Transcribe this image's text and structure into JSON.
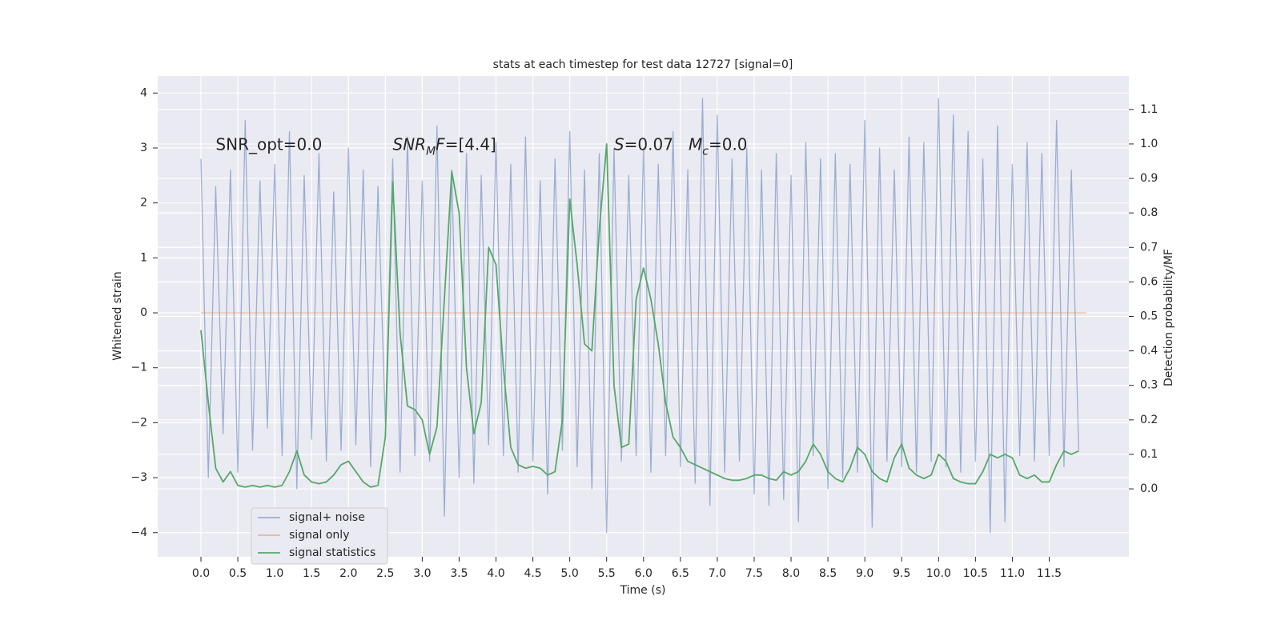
{
  "chart_data": {
    "type": "line",
    "title": "stats at each timestep for test data 12727 [signal=0]",
    "xlabel": "Time (s)",
    "ylabel": "Whitened strain",
    "y2label": "Detection probability/MF",
    "xlim": [
      -0.586,
      12.58
    ],
    "ylim": [
      -4.44,
      4.31
    ],
    "y2lim": [
      -0.197,
      1.197
    ],
    "xticks": [
      {
        "value": 0,
        "label": "0.0"
      },
      0.5,
      {
        "value": 1,
        "label": "1.0"
      },
      1.5,
      {
        "value": 2,
        "label": "2.0"
      },
      2.5,
      {
        "value": 3,
        "label": "3.0"
      },
      3.5,
      {
        "value": 4,
        "label": "4.0"
      },
      4.5,
      {
        "value": 5,
        "label": "5.0"
      },
      5.5,
      {
        "value": 6,
        "label": "6.0"
      },
      6.5,
      {
        "value": 7,
        "label": "7.0"
      },
      7.5,
      {
        "value": 8,
        "label": "8.0"
      },
      8.5,
      {
        "value": 9,
        "label": "9.0"
      },
      9.5,
      {
        "value": 10,
        "label": "10.0"
      },
      10.5,
      {
        "value": 11,
        "label": "11.0"
      },
      11.5
    ],
    "yticks": [
      {
        "value": -4,
        "label": "−4"
      },
      {
        "value": -3,
        "label": "−3"
      },
      {
        "value": -2,
        "label": "−2"
      },
      {
        "value": -1,
        "label": "−1"
      },
      0,
      1,
      2,
      3,
      4
    ],
    "y2ticks": [
      {
        "value": 0,
        "label": "0.0"
      },
      0.1,
      0.2,
      0.3,
      0.4,
      0.5,
      0.6,
      0.7,
      0.8,
      0.9,
      {
        "value": 1,
        "label": "1.0"
      },
      1.1
    ],
    "grid": true,
    "legend": "lower left",
    "x": [
      0.0,
      0.1,
      0.2,
      0.3,
      0.4,
      0.5,
      0.6,
      0.7,
      0.8,
      0.9,
      1.0,
      1.1,
      1.2,
      1.3,
      1.4,
      1.5,
      1.6,
      1.7,
      1.8,
      1.9,
      2.0,
      2.1,
      2.2,
      2.3,
      2.4,
      2.5,
      2.6,
      2.7,
      2.8,
      2.9,
      3.0,
      3.1,
      3.2,
      3.3,
      3.4,
      3.5,
      3.6,
      3.7,
      3.8,
      3.9,
      4.0,
      4.1,
      4.2,
      4.3,
      4.4,
      4.5,
      4.6,
      4.7,
      4.8,
      4.9,
      5.0,
      5.1,
      5.2,
      5.3,
      5.4,
      5.5,
      5.6,
      5.7,
      5.8,
      5.9,
      6.0,
      6.1,
      6.2,
      6.3,
      6.4,
      6.5,
      6.6,
      6.7,
      6.8,
      6.9,
      7.0,
      7.1,
      7.2,
      7.3,
      7.4,
      7.5,
      7.6,
      7.7,
      7.8,
      7.9,
      8.0,
      8.1,
      8.2,
      8.3,
      8.4,
      8.5,
      8.6,
      8.7,
      8.8,
      8.9,
      9.0,
      9.1,
      9.2,
      9.3,
      9.4,
      9.5,
      9.6,
      9.7,
      9.8,
      9.9,
      10.0,
      10.1,
      10.2,
      10.3,
      10.4,
      10.5,
      10.6,
      10.7,
      10.8,
      10.9,
      11.0,
      11.1,
      11.2,
      11.3,
      11.4,
      11.5,
      11.6,
      11.7,
      11.8,
      11.9
    ],
    "series": [
      {
        "name": "signal+ noise",
        "color": "#4c72b0",
        "opacity": 0.5,
        "values": [
          2.8,
          -3.0,
          2.3,
          -2.2,
          2.6,
          -2.9,
          3.5,
          -2.5,
          2.4,
          -2.1,
          2.7,
          -2.6,
          3.3,
          -3.2,
          2.5,
          -2.3,
          2.9,
          -2.7,
          2.2,
          -2.5,
          3.0,
          -2.4,
          2.6,
          -2.8,
          2.3,
          -2.0,
          2.8,
          -2.9,
          3.2,
          -2.6,
          2.4,
          -2.7,
          3.4,
          -3.7,
          2.6,
          -3.0,
          2.9,
          -3.1,
          2.5,
          -2.4,
          3.1,
          -2.6,
          2.7,
          -2.9,
          3.2,
          -2.7,
          2.4,
          -3.3,
          2.8,
          -2.5,
          3.3,
          -2.8,
          2.6,
          -3.2,
          2.9,
          -4.0,
          3.0,
          -2.7,
          2.5,
          -2.6,
          3.0,
          -2.9,
          2.7,
          -2.6,
          3.3,
          -2.8,
          2.6,
          -3.1,
          3.9,
          -3.5,
          3.6,
          -2.9,
          2.8,
          -2.7,
          3.0,
          -3.3,
          2.6,
          -3.5,
          2.9,
          -3.4,
          2.5,
          -3.8,
          3.1,
          -2.6,
          2.8,
          -3.2,
          2.9,
          -3.0,
          2.7,
          -2.9,
          3.5,
          -3.9,
          3.0,
          -2.7,
          2.6,
          -2.8,
          3.2,
          -2.9,
          3.1,
          -2.7,
          3.9,
          -2.8,
          3.6,
          -2.9,
          3.3,
          -2.7,
          2.8,
          -4.0,
          3.4,
          -3.8,
          2.7,
          -2.6,
          3.1,
          -2.7,
          2.9,
          -2.6,
          3.5,
          -2.8,
          2.6,
          -2.5
        ]
      },
      {
        "name": "signal only",
        "color": "#dd8452",
        "opacity": 0.5,
        "x": [
          0.0,
          12.0
        ],
        "values": [
          0,
          0
        ]
      },
      {
        "name": "signal statistics",
        "color": "#55a868",
        "opacity": 1,
        "axis": "y2",
        "values": [
          0.46,
          0.25,
          0.06,
          0.02,
          0.05,
          0.01,
          0.005,
          0.01,
          0.005,
          0.01,
          0.005,
          0.01,
          0.05,
          0.11,
          0.04,
          0.02,
          0.015,
          0.02,
          0.04,
          0.07,
          0.08,
          0.05,
          0.02,
          0.005,
          0.01,
          0.15,
          0.89,
          0.45,
          0.24,
          0.23,
          0.2,
          0.1,
          0.18,
          0.55,
          0.92,
          0.8,
          0.35,
          0.16,
          0.25,
          0.7,
          0.65,
          0.35,
          0.12,
          0.07,
          0.06,
          0.065,
          0.06,
          0.04,
          0.05,
          0.2,
          0.84,
          0.65,
          0.42,
          0.4,
          0.75,
          1.0,
          0.3,
          0.12,
          0.13,
          0.55,
          0.64,
          0.55,
          0.42,
          0.25,
          0.15,
          0.12,
          0.08,
          0.07,
          0.06,
          0.05,
          0.04,
          0.03,
          0.025,
          0.025,
          0.03,
          0.04,
          0.04,
          0.03,
          0.025,
          0.05,
          0.04,
          0.05,
          0.08,
          0.13,
          0.1,
          0.05,
          0.03,
          0.02,
          0.06,
          0.12,
          0.1,
          0.05,
          0.03,
          0.02,
          0.09,
          0.13,
          0.06,
          0.04,
          0.03,
          0.04,
          0.1,
          0.08,
          0.03,
          0.02,
          0.015,
          0.015,
          0.05,
          0.1,
          0.09,
          0.1,
          0.09,
          0.04,
          0.03,
          0.04,
          0.02,
          0.02,
          0.07,
          0.11,
          0.1,
          0.11
        ]
      }
    ],
    "annotations": [
      {
        "x": 0.2,
        "y": 3.05,
        "parts": [
          {
            "text": "SNR_opt=0.0"
          }
        ]
      },
      {
        "x": 2.6,
        "y": 3.05,
        "parts": [
          {
            "text": "SNR",
            "style": "italic"
          },
          {
            "text": "M",
            "style": "sub"
          },
          {
            "text": "F",
            "style": "italic"
          },
          {
            "text": "=[4.4]"
          }
        ]
      },
      {
        "x": 5.6,
        "y": 3.05,
        "parts": [
          {
            "text": "S",
            "style": "italic"
          },
          {
            "text": "=0.07   "
          },
          {
            "text": "M",
            "style": "italic"
          },
          {
            "text": "c",
            "style": "sub"
          },
          {
            "text": "=0.0"
          }
        ]
      }
    ]
  }
}
